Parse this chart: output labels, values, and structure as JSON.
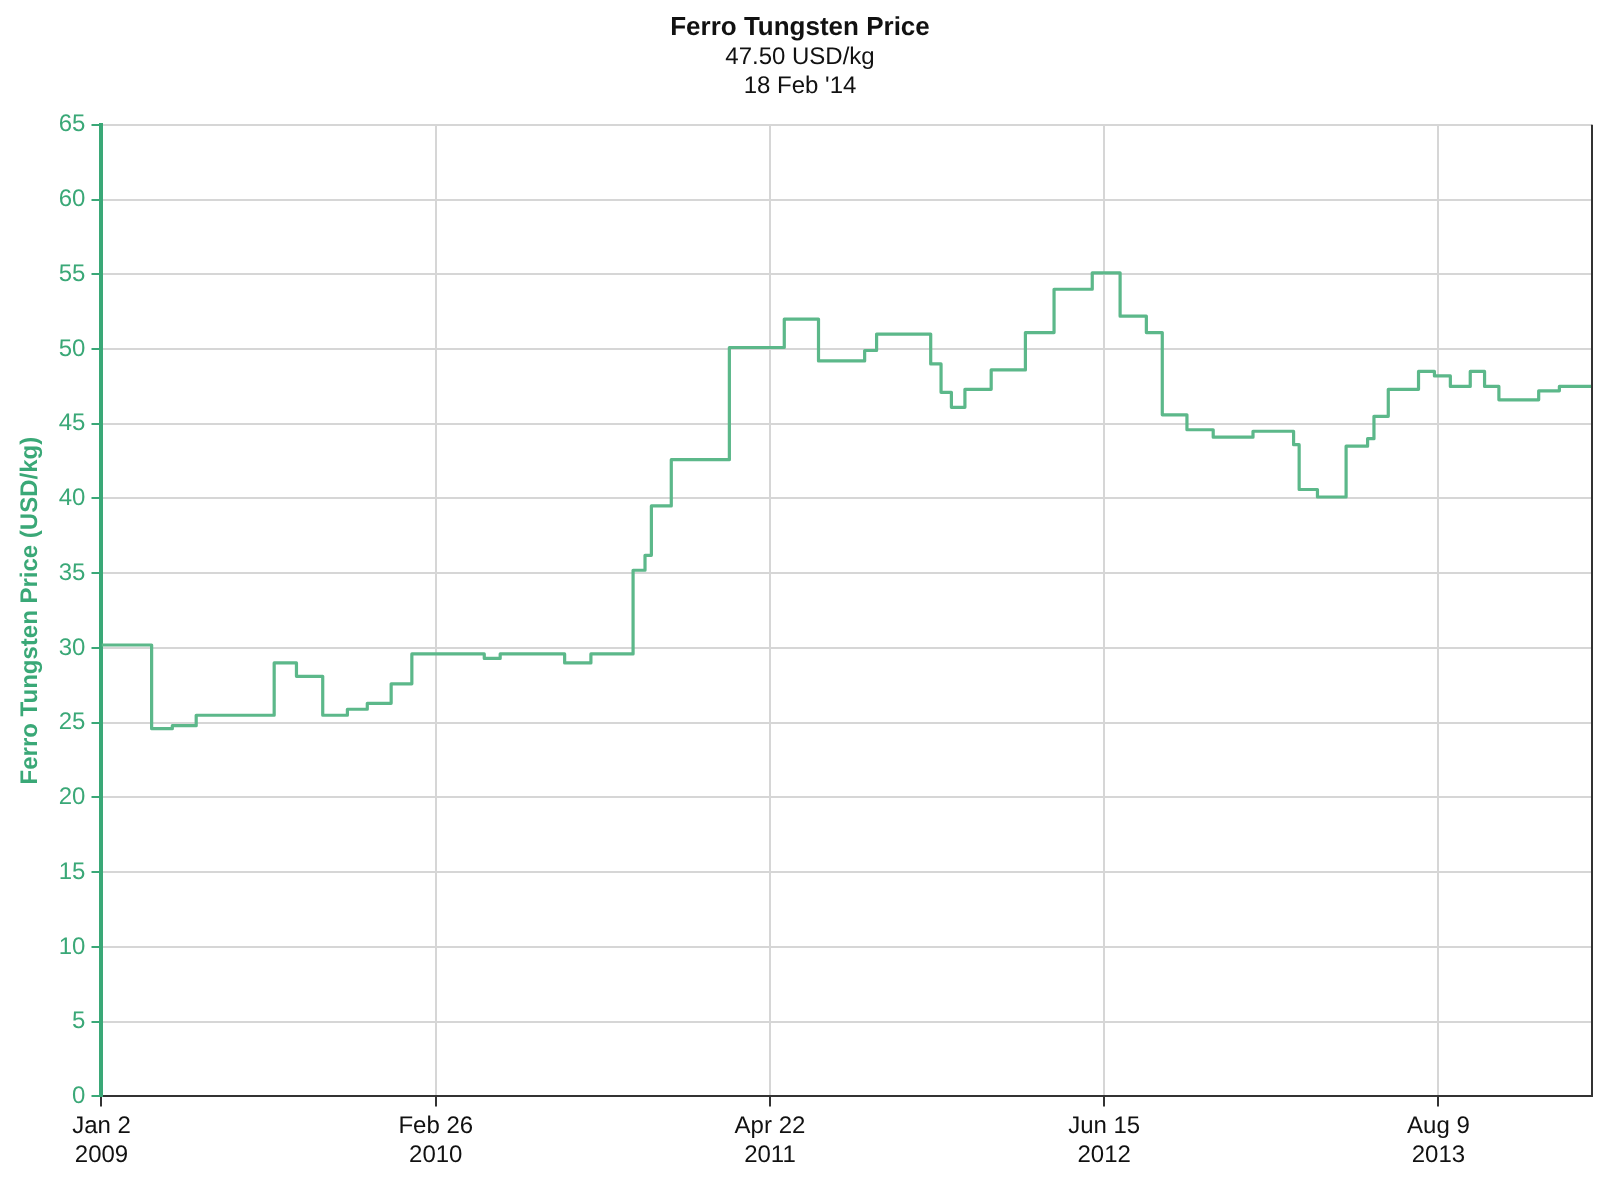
{
  "chart_data": {
    "type": "step",
    "title": "Ferro Tungsten Price",
    "subtitle": "47.50 USD/kg\n18 Feb '14",
    "ylabel": "Ferro Tungsten Price (USD/kg)",
    "x": [
      "2009-01-02",
      "2009-03-01",
      "2009-03-06",
      "2009-04-01",
      "2009-05-01",
      "2009-07-27",
      "2009-08-07",
      "2009-08-28",
      "2009-09-04",
      "2009-09-30",
      "2009-10-07",
      "2009-10-30",
      "2009-11-07",
      "2009-11-24",
      "2009-12-02",
      "2009-12-22",
      "2010-01-01",
      "2010-01-11",
      "2010-01-27",
      "2010-04-15",
      "2010-04-28",
      "2010-05-18",
      "2010-07-25",
      "2010-08-07",
      "2010-08-30",
      "2010-09-09",
      "2010-10-09",
      "2010-11-01",
      "2010-11-16",
      "2010-11-24",
      "2010-12-09",
      "2010-12-19",
      "2011-02-13",
      "2011-03-02",
      "2011-04-30",
      "2011-05-10",
      "2011-06-12",
      "2011-06-22",
      "2011-08-09",
      "2011-08-19",
      "2011-09-03",
      "2011-10-29",
      "2011-11-10",
      "2011-11-23",
      "2011-12-06",
      "2011-12-23",
      "2012-01-18",
      "2012-01-25",
      "2012-03-03",
      "2012-03-08",
      "2012-04-05",
      "2012-04-13",
      "2012-05-18",
      "2012-05-31",
      "2012-06-25",
      "2012-07-05",
      "2012-07-25",
      "2012-08-07",
      "2012-08-27",
      "2012-09-14",
      "2012-09-27",
      "2012-10-17",
      "2012-10-30",
      "2012-12-02",
      "2012-12-19",
      "2013-01-26",
      "2013-02-08",
      "2013-02-15",
      "2013-02-26",
      "2013-03-10",
      "2013-04-04",
      "2013-04-15",
      "2013-05-02",
      "2013-05-12",
      "2013-05-20",
      "2013-05-28",
      "2013-06-07",
      "2013-07-10",
      "2013-07-15",
      "2013-07-27",
      "2013-08-04",
      "2013-08-24",
      "2013-09-11",
      "2013-09-18",
      "2013-09-26",
      "2013-10-06",
      "2013-10-24",
      "2013-11-26",
      "2013-12-13",
      "2013-12-29",
      "2014-01-08",
      "2014-02-18"
    ],
    "series": [
      {
        "color": "#5cb88a",
        "values": [
          30.2,
          30.2,
          24.6,
          24.8,
          25.5,
          25.5,
          29.0,
          29.0,
          28.1,
          28.1,
          25.5,
          25.5,
          25.9,
          25.9,
          26.3,
          26.3,
          27.6,
          27.6,
          29.6,
          29.6,
          29.3,
          29.6,
          29.6,
          29.0,
          29.0,
          29.6,
          29.6,
          35.2,
          36.2,
          39.5,
          39.5,
          42.6,
          42.6,
          50.1,
          50.1,
          52.0,
          52.0,
          49.2,
          49.2,
          49.9,
          51.0,
          51.0,
          49.0,
          47.1,
          46.1,
          47.3,
          47.3,
          48.6,
          48.6,
          51.1,
          51.1,
          54.0,
          54.0,
          55.1,
          55.1,
          52.2,
          52.2,
          51.1,
          45.6,
          45.6,
          44.6,
          44.6,
          44.1,
          44.1,
          44.5,
          44.5,
          43.6,
          40.6,
          40.6,
          40.1,
          40.1,
          43.5,
          43.5,
          44.0,
          45.5,
          45.5,
          47.3,
          47.3,
          48.5,
          48.5,
          48.2,
          47.5,
          47.5,
          48.5,
          48.5,
          47.5,
          46.6,
          46.6,
          47.2,
          47.2,
          47.5,
          47.5
        ]
      }
    ],
    "xlim": [
      "2009-01-02",
      "2014-02-18"
    ],
    "xticks": [
      {
        "value": "2009-01-02",
        "label": "Jan 2\n2009"
      },
      {
        "value": "2010-02-26",
        "label": "Feb 26\n2010"
      },
      {
        "value": "2011-04-22",
        "label": "Apr 22\n2011"
      },
      {
        "value": "2012-06-15",
        "label": "Jun 15\n2012"
      },
      {
        "value": "2013-08-09",
        "label": "Aug 9\n2013"
      }
    ],
    "ylim": [
      0,
      65
    ],
    "yticks": [
      0,
      5,
      10,
      15,
      20,
      25,
      30,
      35,
      40,
      45,
      50,
      55,
      60,
      65
    ],
    "grid": true,
    "legend": false,
    "marker": "none",
    "line_style": "solid"
  }
}
